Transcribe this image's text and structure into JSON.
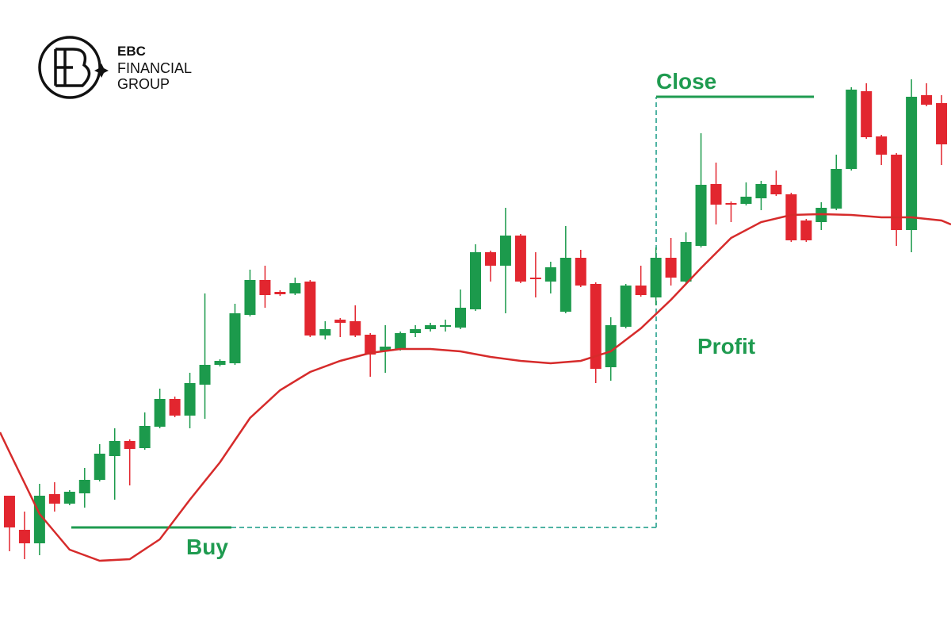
{
  "logo": {
    "name": "EBC",
    "line1": "FINANCIAL",
    "line2": "GROUP"
  },
  "chart_data": {
    "type": "candlestick",
    "xlim": [
      -0.63,
      62.63
    ],
    "ylim": [
      0,
      150
    ],
    "up_color": "#1c9a4c",
    "down_color": "#e2262f",
    "open": [
      27,
      18.4,
      15,
      27.4,
      25,
      27.6,
      31,
      37,
      40.8,
      39,
      44.4,
      51.4,
      47.2,
      55,
      60,
      60.4,
      72.6,
      81.4,
      78.4,
      78,
      81,
      67.4,
      71.4,
      71,
      67.6,
      63.6,
      64,
      68,
      69,
      69.6,
      69.4,
      74,
      88.4,
      85,
      92.6,
      82,
      81,
      73.4,
      87,
      80.4,
      59.4,
      69.6,
      80,
      77,
      87,
      81,
      90,
      105.6,
      100.8,
      100.6,
      102,
      105.4,
      103,
      96.4,
      96,
      99.4,
      109.4,
      129,
      117.6,
      113,
      94,
      128,
      126
    ],
    "high": [
      27,
      23,
      30,
      30.4,
      28.4,
      34,
      40,
      44,
      41.2,
      48,
      54,
      52,
      58,
      78,
      61.4,
      75.4,
      84,
      85,
      78.8,
      82,
      81.4,
      71,
      71.8,
      75,
      68,
      70,
      68.4,
      70,
      70.6,
      71.4,
      79,
      90.4,
      88.8,
      99.6,
      93,
      88.4,
      86,
      95,
      89,
      80.8,
      72,
      80.4,
      85,
      89.6,
      92,
      93.4,
      118.4,
      111,
      101.2,
      106,
      106.4,
      109,
      103.4,
      96.8,
      101,
      113,
      130,
      131,
      118,
      113.4,
      132,
      131,
      128
    ],
    "low": [
      13,
      11,
      12,
      23,
      24.6,
      24,
      30.6,
      26,
      29.6,
      38.6,
      44,
      46.8,
      44,
      46.4,
      59.6,
      60,
      72.2,
      74.4,
      77.4,
      77.6,
      67,
      66.4,
      67,
      67,
      57,
      58,
      63.6,
      67,
      68.4,
      68.4,
      69,
      73.6,
      81,
      73,
      80.6,
      77,
      78,
      73,
      79.6,
      55.4,
      56,
      69.2,
      77.2,
      75,
      80,
      80.6,
      89.6,
      95.4,
      96,
      100.2,
      99,
      102.6,
      91,
      91,
      94,
      99,
      109,
      117,
      110.4,
      90,
      88.4,
      125.2,
      110.4
    ],
    "close": [
      19,
      15,
      27,
      25,
      28,
      31,
      37.6,
      40.8,
      38.8,
      44.6,
      51.4,
      47.2,
      55.4,
      60,
      61,
      73,
      81.4,
      77.6,
      77.8,
      80.6,
      67.4,
      69,
      70.6,
      67.4,
      62.6,
      64.6,
      68,
      69,
      70,
      70,
      74.4,
      88.4,
      85,
      92.6,
      81,
      81.6,
      84.6,
      87,
      80,
      59,
      70,
      80,
      77.6,
      87,
      82,
      91,
      105.4,
      100.4,
      100.4,
      102.4,
      105.6,
      103,
      91.4,
      91.4,
      99.6,
      109.4,
      129.4,
      117.4,
      113,
      94,
      127.6,
      125.6,
      115.6
    ],
    "moving_average": {
      "color": "#d62b2b",
      "x": [
        -0.63,
        0,
        2,
        4,
        6,
        8,
        10,
        12,
        14,
        16,
        18,
        20,
        22,
        24,
        26,
        28,
        30,
        32,
        34,
        36,
        38,
        40,
        42,
        44,
        46,
        48,
        50,
        52,
        54,
        56,
        58,
        60,
        62,
        62.63
      ],
      "values": [
        43,
        38,
        22.4,
        13.4,
        10.6,
        11,
        16,
        26,
        35.4,
        46.6,
        53.6,
        58.2,
        61,
        63,
        64,
        64,
        63.4,
        62,
        61,
        60.4,
        61,
        63.4,
        69.2,
        76.4,
        84.4,
        92,
        96,
        97.8,
        98,
        97.8,
        97.2,
        97.2,
        96.4,
        95.4
      ]
    },
    "buy": {
      "label": "Buy",
      "value": 19
    },
    "close_level": {
      "label": "Close",
      "value": 127.6
    },
    "profit": "Profit"
  }
}
